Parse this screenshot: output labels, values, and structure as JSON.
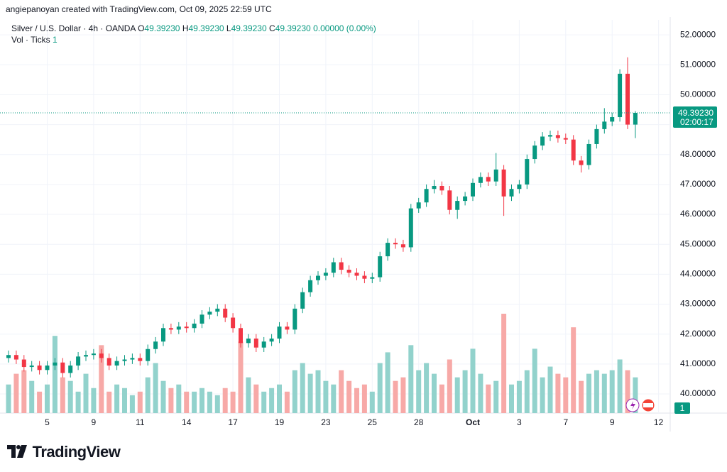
{
  "header": {
    "credit": "angiepanoyan created with TradingView.com, Oct 09, 2025 22:59 UTC",
    "brand": "TradingView"
  },
  "legend": {
    "symbol": "Silver / U.S. Dollar · 4h · OANDA",
    "ohlc": [
      {
        "key": "O",
        "value": "49.39230"
      },
      {
        "key": "H",
        "value": "49.39230"
      },
      {
        "key": "L",
        "value": "49.39230"
      },
      {
        "key": "C",
        "value": "49.39230"
      }
    ],
    "change": "0.00000 (0.00%)",
    "volume_label": "Vol · Ticks",
    "volume_value": "1"
  },
  "chart_data": {
    "type": "candlestick",
    "categories": [
      null,
      null,
      null,
      null,
      null,
      "5",
      null,
      null,
      null,
      null,
      null,
      "9",
      null,
      null,
      null,
      null,
      null,
      "11",
      null,
      null,
      null,
      null,
      null,
      "14",
      null,
      null,
      null,
      null,
      null,
      "17",
      null,
      null,
      null,
      null,
      null,
      "19",
      null,
      null,
      null,
      null,
      null,
      "23",
      null,
      null,
      null,
      null,
      null,
      "25",
      null,
      null,
      null,
      null,
      null,
      "28",
      null,
      null,
      null,
      null,
      null,
      null,
      "Oct",
      null,
      null,
      null,
      null,
      null,
      "3",
      null,
      null,
      null,
      null,
      null,
      "7",
      null,
      null,
      null,
      null,
      null,
      "9",
      null,
      null,
      null,
      null,
      null,
      "12",
      null
    ],
    "open": [
      41.2,
      41.3,
      41.15,
      40.9,
      40.95,
      40.8,
      40.95,
      41.05,
      40.7,
      40.95,
      41.25,
      41.3,
      41.35,
      41.2,
      40.95,
      41.1,
      41.15,
      41.2,
      41.1,
      41.5,
      41.75,
      42.2,
      42.15,
      42.25,
      42.2,
      42.35,
      42.65,
      42.75,
      42.85,
      42.55,
      42.2,
      41.7,
      41.85,
      41.55,
      41.75,
      41.85,
      42.25,
      42.15,
      42.85,
      43.4,
      43.8,
      43.95,
      44.05,
      44.4,
      44.15,
      44.05,
      43.95,
      43.85,
      43.9,
      44.6,
      45.05,
      45.0,
      44.9,
      46.2,
      46.4,
      46.85,
      46.95,
      46.8,
      46.15,
      46.45,
      46.6,
      47.05,
      47.25,
      47.1,
      47.5,
      46.6,
      46.85,
      47.0,
      47.85,
      48.3,
      48.6,
      48.65,
      48.55,
      48.5,
      47.8,
      47.65,
      48.35,
      48.85,
      49.1,
      49.25,
      50.7,
      49.0,
      null,
      null,
      null,
      null
    ],
    "high": [
      41.45,
      41.45,
      41.3,
      41.1,
      41.1,
      41.1,
      41.2,
      41.2,
      41.1,
      41.4,
      41.45,
      41.5,
      41.5,
      41.35,
      41.25,
      41.3,
      41.35,
      41.35,
      41.65,
      41.9,
      42.35,
      42.35,
      42.4,
      42.4,
      42.5,
      42.8,
      42.9,
      43.0,
      43.0,
      42.7,
      42.35,
      42.0,
      42.0,
      41.9,
      42.0,
      42.4,
      42.4,
      43.0,
      43.55,
      43.95,
      44.1,
      44.2,
      44.55,
      44.55,
      44.3,
      44.2,
      44.1,
      44.05,
      44.75,
      45.2,
      45.2,
      45.15,
      46.35,
      46.55,
      47.0,
      47.15,
      47.1,
      46.95,
      46.6,
      46.75,
      47.2,
      47.4,
      47.4,
      48.05,
      47.65,
      47.0,
      47.15,
      48.0,
      48.45,
      48.75,
      48.8,
      48.8,
      48.7,
      48.65,
      47.95,
      48.5,
      49.0,
      49.55,
      49.4,
      50.85,
      51.25,
      49.45,
      null,
      null,
      null,
      null
    ],
    "low": [
      41.05,
      41.0,
      40.75,
      40.75,
      40.65,
      40.65,
      40.8,
      40.55,
      40.55,
      40.8,
      41.1,
      41.15,
      41.05,
      40.8,
      40.8,
      40.95,
      41.0,
      40.95,
      40.95,
      41.35,
      41.6,
      42.0,
      42.0,
      42.05,
      42.05,
      42.2,
      42.5,
      42.6,
      42.4,
      42.05,
      41.55,
      41.55,
      41.4,
      41.4,
      41.6,
      41.7,
      42.0,
      42.0,
      42.7,
      43.25,
      43.65,
      43.8,
      43.9,
      44.0,
      43.9,
      43.8,
      43.7,
      43.7,
      43.75,
      44.45,
      44.85,
      44.75,
      44.75,
      46.05,
      46.25,
      46.7,
      46.65,
      46.0,
      45.85,
      46.3,
      46.45,
      46.9,
      46.95,
      46.95,
      45.95,
      46.45,
      46.7,
      46.85,
      47.7,
      48.15,
      48.45,
      48.4,
      48.35,
      47.65,
      47.4,
      47.5,
      48.2,
      48.7,
      48.95,
      49.1,
      48.85,
      48.55,
      null,
      null,
      null,
      null
    ],
    "close": [
      41.3,
      41.15,
      40.9,
      40.95,
      40.8,
      40.95,
      41.05,
      40.7,
      40.95,
      41.25,
      41.3,
      41.35,
      41.2,
      40.95,
      41.1,
      41.15,
      41.2,
      41.1,
      41.5,
      41.75,
      42.2,
      42.15,
      42.25,
      42.2,
      42.35,
      42.65,
      42.75,
      42.85,
      42.55,
      42.2,
      41.7,
      41.85,
      41.55,
      41.75,
      41.85,
      42.25,
      42.15,
      42.85,
      43.4,
      43.8,
      43.95,
      44.05,
      44.4,
      44.15,
      44.05,
      43.95,
      43.85,
      43.9,
      44.6,
      45.05,
      45.0,
      44.9,
      46.2,
      46.4,
      46.85,
      46.95,
      46.8,
      46.15,
      46.45,
      46.6,
      47.05,
      47.25,
      47.1,
      47.5,
      46.6,
      46.85,
      47.0,
      47.85,
      48.3,
      48.6,
      48.65,
      48.55,
      48.5,
      47.8,
      47.65,
      48.35,
      48.85,
      49.1,
      49.25,
      50.7,
      49.0,
      49.3923,
      null,
      null,
      null,
      null
    ],
    "volume": [
      40,
      55,
      60,
      45,
      30,
      40,
      108,
      50,
      45,
      30,
      55,
      35,
      95,
      30,
      40,
      35,
      25,
      30,
      50,
      70,
      45,
      35,
      40,
      30,
      30,
      35,
      30,
      25,
      35,
      30,
      100,
      50,
      40,
      30,
      35,
      40,
      30,
      60,
      70,
      55,
      60,
      45,
      40,
      60,
      45,
      35,
      40,
      30,
      70,
      85,
      45,
      50,
      95,
      60,
      70,
      55,
      40,
      75,
      50,
      60,
      90,
      55,
      40,
      45,
      139,
      40,
      45,
      60,
      90,
      50,
      65,
      55,
      50,
      120,
      45,
      55,
      60,
      55,
      60,
      75,
      60,
      50,
      null,
      null,
      null,
      null
    ],
    "up_color": "#089981",
    "down_color": "#f23645",
    "up_volume_color": "#92d2cc",
    "down_volume_color": "#f7a9a7",
    "ylim": [
      39.36,
      52.5
    ],
    "yticks": [
      {
        "value": 40,
        "label": "40.00000"
      },
      {
        "value": 41,
        "label": "41.00000"
      },
      {
        "value": 42,
        "label": "42.00000"
      },
      {
        "value": 43,
        "label": "43.00000"
      },
      {
        "value": 44,
        "label": "44.00000"
      },
      {
        "value": 45,
        "label": "45.00000"
      },
      {
        "value": 46,
        "label": "46.00000"
      },
      {
        "value": 47,
        "label": "47.00000"
      },
      {
        "value": 48,
        "label": "48.00000"
      },
      {
        "value": 49,
        "label": "49.00000"
      },
      {
        "value": 50,
        "label": "50.00000"
      },
      {
        "value": 51,
        "label": "51.00000"
      },
      {
        "value": 52,
        "label": "52.00000"
      }
    ],
    "grid": true,
    "last_price": {
      "value": 49.3923,
      "label": "49.39230"
    },
    "countdown": "02:00:17",
    "volume_badge": "1"
  }
}
